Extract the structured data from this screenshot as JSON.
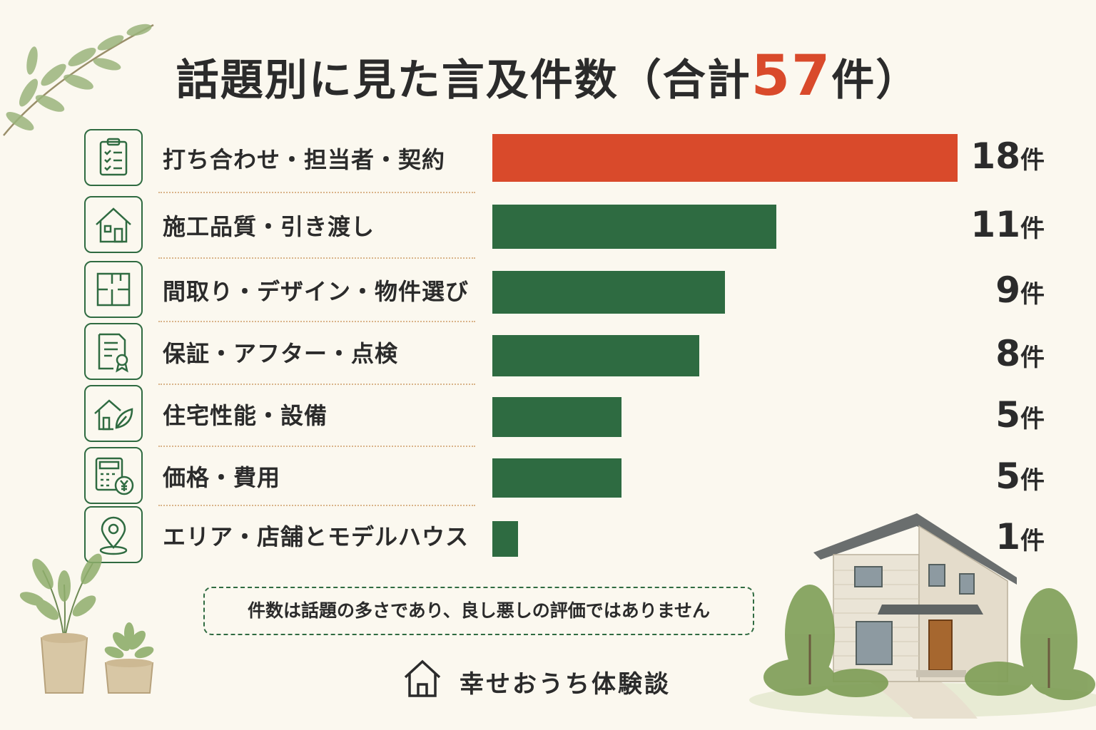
{
  "title": {
    "prefix": "話題別に見た言及件数（合計",
    "total": "57",
    "suffix": "件）"
  },
  "chart_data": {
    "type": "bar",
    "orientation": "horizontal",
    "categories": [
      "打ち合わせ・担当者・契約",
      "施工品質・引き渡し",
      "間取り・デザイン・物件選び",
      "保証・アフター・点検",
      "住宅性能・設備",
      "価格・費用",
      "エリア・店舗とモデルハウス"
    ],
    "values": [
      18,
      11,
      9,
      8,
      5,
      5,
      1
    ],
    "value_labels": [
      "18",
      "11",
      "9",
      "8",
      "5",
      "5",
      "1"
    ],
    "unit": "件",
    "highlight_color": "#d94a2b",
    "bar_color": "#2e6b41",
    "xlim": [
      0,
      18
    ],
    "grid": false,
    "legend": "none",
    "category_icons": [
      "clipboard-checklist-icon",
      "house-icon",
      "floor-plan-icon",
      "certificate-icon",
      "eco-house-leaf-icon",
      "calculator-yen-icon",
      "map-pin-icon"
    ]
  },
  "note": "件数は話題の多さであり、良し悪しの評価ではありません",
  "brand": {
    "name": "幸せおうち体験談",
    "icon": "house-outline-icon"
  },
  "colors": {
    "accent": "#d94a2b",
    "green": "#2e6b41",
    "background": "#fbf8ef"
  }
}
